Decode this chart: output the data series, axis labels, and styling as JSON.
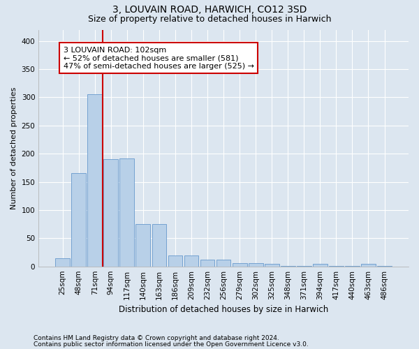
{
  "title": "3, LOUVAIN ROAD, HARWICH, CO12 3SD",
  "subtitle": "Size of property relative to detached houses in Harwich",
  "xlabel": "Distribution of detached houses by size in Harwich",
  "ylabel": "Number of detached properties",
  "categories": [
    "25sqm",
    "48sqm",
    "71sqm",
    "94sqm",
    "117sqm",
    "140sqm",
    "163sqm",
    "186sqm",
    "209sqm",
    "232sqm",
    "256sqm",
    "279sqm",
    "302sqm",
    "325sqm",
    "348sqm",
    "371sqm",
    "394sqm",
    "417sqm",
    "440sqm",
    "463sqm",
    "486sqm"
  ],
  "values": [
    15,
    165,
    305,
    190,
    192,
    75,
    75,
    20,
    20,
    12,
    12,
    6,
    6,
    4,
    1,
    1,
    5,
    1,
    1,
    4,
    1
  ],
  "bar_color": "#b8d0e8",
  "bar_edge_color": "#6699cc",
  "background_color": "#dce6f0",
  "grid_color": "#ffffff",
  "annotation_box_facecolor": "#ffffff",
  "annotation_box_edge": "#cc0000",
  "vline_color": "#cc0000",
  "vline_x_index": 2.5,
  "annotation_text_line1": "3 LOUVAIN ROAD: 102sqm",
  "annotation_text_line2": "← 52% of detached houses are smaller (581)",
  "annotation_text_line3": "47% of semi-detached houses are larger (525) →",
  "title_fontsize": 10,
  "subtitle_fontsize": 9,
  "xlabel_fontsize": 8.5,
  "ylabel_fontsize": 8,
  "tick_fontsize": 7.5,
  "ann_fontsize": 8,
  "footer1": "Contains HM Land Registry data © Crown copyright and database right 2024.",
  "footer2": "Contains public sector information licensed under the Open Government Licence v3.0.",
  "footer_fontsize": 6.5,
  "ylim": [
    0,
    420
  ],
  "yticks": [
    0,
    50,
    100,
    150,
    200,
    250,
    300,
    350,
    400
  ]
}
